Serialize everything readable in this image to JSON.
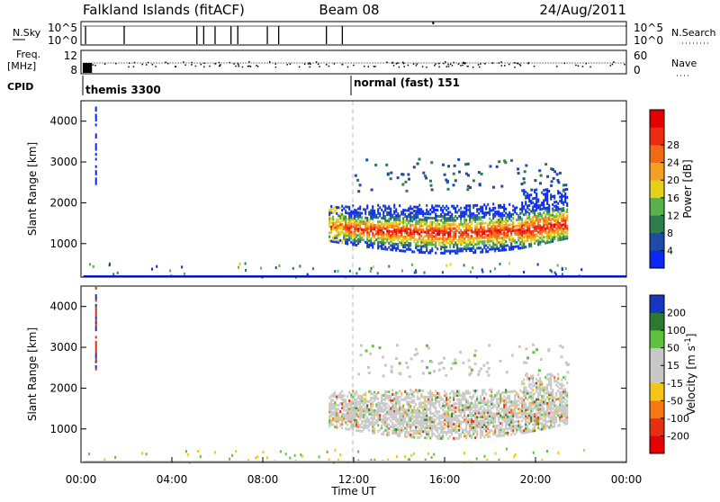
{
  "header": {
    "title": "Falkland Islands (fitACF)",
    "beam": "Beam 08",
    "date": "24/Aug/2011"
  },
  "side_labels": {
    "nsky": "N.Sky",
    "nsearch": "N.Search",
    "freq": "Freq.",
    "freq_unit": "[MHz]",
    "nave": "Nave",
    "cpid": "CPID"
  },
  "noise_panel": {
    "left_ticks": [
      "10^5",
      "10^0"
    ],
    "right_ticks": [
      "10^5",
      "10^0"
    ]
  },
  "freq_panel": {
    "left_ticks": [
      "12",
      "8"
    ],
    "right_ticks": [
      "60",
      "0"
    ]
  },
  "cpid_panel": {
    "modes": [
      {
        "label": "themis 3300",
        "start_hour": 0.05
      },
      {
        "label": "normal (fast) 151",
        "start_hour": 12.0
      }
    ]
  },
  "colors": {
    "power": [
      "#0a28f0",
      "#1e4aa8",
      "#2d7d4f",
      "#58b24a",
      "#e5d11a",
      "#f5a020",
      "#f16a18",
      "#ee2a10",
      "#e40000"
    ],
    "velocity": [
      "#1636c0",
      "#2a7a32",
      "#5cc33a",
      "#c8c8c8",
      "#c8c8c8",
      "#f5c414",
      "#f57814",
      "#e43010",
      "#e40000"
    ]
  },
  "chart_data": [
    {
      "type": "heatmap",
      "name": "power",
      "xlabel": "",
      "ylabel": "Slant Range [km]",
      "xlim": [
        0,
        24
      ],
      "ylim": [
        180,
        4500
      ],
      "yticks": [
        1000,
        2000,
        3000,
        4000
      ],
      "colorbar_label": "Power [dB]",
      "colorbar_ticks": [
        "4",
        "8",
        "12",
        "16",
        "20",
        "24",
        "28"
      ]
    },
    {
      "type": "heatmap",
      "name": "velocity",
      "xlabel": "Time UT",
      "ylabel": "Slant Range [km]",
      "xlim": [
        0,
        24
      ],
      "ylim": [
        180,
        4500
      ],
      "yticks": [
        1000,
        2000,
        3000,
        4000
      ],
      "xticks": [
        "00:00",
        "04:00",
        "08:00",
        "12:00",
        "16:00",
        "20:00",
        "00:00"
      ],
      "colorbar_label": "Velocity [m s^-1]",
      "colorbar_ticks": [
        "200",
        "100",
        "50",
        "15",
        "-15",
        "-50",
        "-100",
        "-200"
      ]
    }
  ]
}
